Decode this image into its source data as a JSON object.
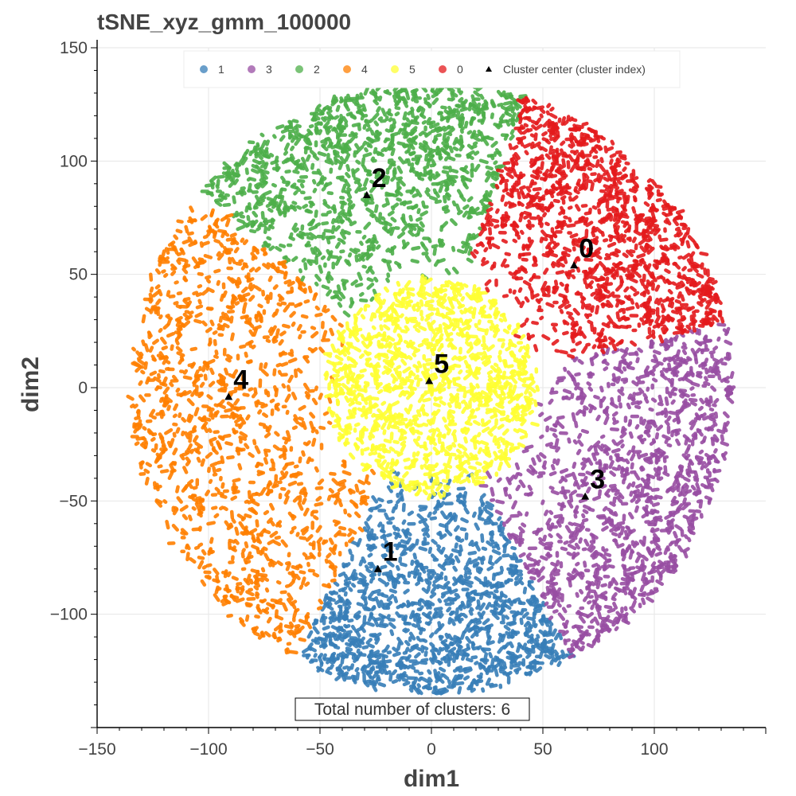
{
  "chart_data": {
    "type": "scatter",
    "title": "tSNE_xyz_gmm_100000",
    "xlabel": "dim1",
    "ylabel": "dim2",
    "xlim": [
      -150,
      150
    ],
    "ylim": [
      -150,
      150
    ],
    "xticks": [
      -150,
      -100,
      -50,
      0,
      50,
      100
    ],
    "yticks": [
      -100,
      -50,
      0,
      50,
      100,
      150
    ],
    "grid": true,
    "legend_position": "top",
    "series": [
      {
        "name": "1",
        "color": "#377eb8",
        "region": {
          "angle_start": 243,
          "angle_end": 298,
          "r_min": 35,
          "r_max": 135
        }
      },
      {
        "name": "3",
        "color": "#984ea3",
        "region": {
          "angle_start": 298,
          "angle_end": 372,
          "r_min": 45,
          "r_max": 135
        }
      },
      {
        "name": "2",
        "color": "#4daf4a",
        "region": {
          "angle_start": 72,
          "angle_end": 140,
          "r_min": 45,
          "r_max": 135
        }
      },
      {
        "name": "4",
        "color": "#ff7f00",
        "region": {
          "angle_start": 140,
          "angle_end": 243,
          "r_min": 40,
          "r_max": 135
        }
      },
      {
        "name": "5",
        "color": "#ffff33",
        "region": {
          "angle_start": 0,
          "angle_end": 360,
          "r_min": 0,
          "r_max": 48
        }
      },
      {
        "name": "0",
        "color": "#e41a1c",
        "region": {
          "angle_start": 12,
          "angle_end": 72,
          "r_min": 45,
          "r_max": 135
        }
      }
    ],
    "cluster_centers": [
      {
        "label": "0",
        "x": 64,
        "y": 54
      },
      {
        "label": "1",
        "x": -24,
        "y": -80
      },
      {
        "label": "2",
        "x": -29,
        "y": 85
      },
      {
        "label": "3",
        "x": 69,
        "y": -48
      },
      {
        "label": "4",
        "x": -91,
        "y": -4
      },
      {
        "label": "5",
        "x": -1,
        "y": 3
      }
    ],
    "center_legend_label": "Cluster center (cluster index)",
    "annotation": "Total number of clusters: 6"
  }
}
